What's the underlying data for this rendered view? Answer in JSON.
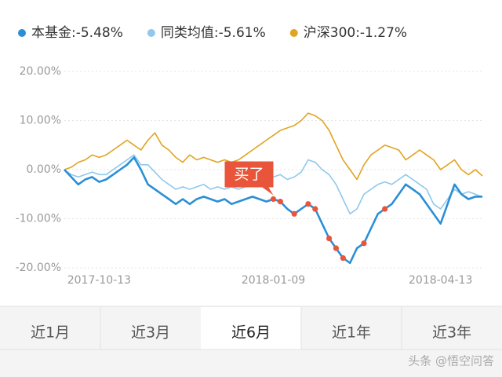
{
  "chart_data": {
    "type": "line",
    "annotation": "买了",
    "categories": [
      null,
      null,
      null,
      null,
      null,
      "2017-10-13",
      null,
      null,
      null,
      null,
      null,
      null,
      null,
      null,
      null,
      null,
      null,
      null,
      null,
      null,
      null,
      null,
      null,
      null,
      null,
      null,
      null,
      null,
      null,
      null,
      "2018-01-09",
      null,
      null,
      null,
      null,
      null,
      null,
      null,
      null,
      null,
      null,
      null,
      null,
      null,
      null,
      null,
      null,
      null,
      null,
      null,
      null,
      null,
      null,
      null,
      "2018-04-13",
      null,
      null,
      null,
      null,
      null,
      null
    ],
    "series": [
      {
        "name": "本基金:-5.48%",
        "color": "#2b8fd6",
        "values": [
          0,
          -1.5,
          -3,
          -2,
          -1.5,
          -2.5,
          -2,
          -1,
          0,
          1,
          2.5,
          0,
          -3,
          -4,
          -5,
          -6,
          -7,
          -6,
          -7,
          -6,
          -5.5,
          -6,
          -6.5,
          -6,
          -7,
          -6.5,
          -6,
          -5.5,
          -6,
          -6.5,
          -6,
          -6.5,
          -8,
          -9,
          -8,
          -7,
          -8,
          -11,
          -14,
          -16,
          -18,
          -19,
          -16,
          -15,
          -12,
          -9,
          -8,
          -7,
          -5,
          -3,
          -4,
          -5,
          -7,
          -9,
          -11,
          -7,
          -3,
          -5,
          -6,
          -5.5,
          -5.48
        ]
      },
      {
        "name": "同类均值:-5.61%",
        "color": "#8fc8ec",
        "values": [
          0,
          -1,
          -1.5,
          -1,
          -0.5,
          -1,
          -1,
          0,
          1,
          2,
          3,
          1,
          1,
          -0.5,
          -2,
          -3,
          -4,
          -3.5,
          -4,
          -3.5,
          -3,
          -4,
          -3.5,
          -4,
          -3.5,
          -4,
          -3.5,
          -3,
          -2.5,
          -2,
          -1.5,
          -1,
          -2,
          -1.5,
          -0.5,
          2,
          1.5,
          0,
          -1,
          -3,
          -6,
          -9,
          -8,
          -5,
          -4,
          -3,
          -2.5,
          -3,
          -2,
          -1,
          -2,
          -3,
          -4,
          -7,
          -8,
          -6,
          -4,
          -5,
          -4.5,
          -5,
          -5.61
        ]
      },
      {
        "name": "沪深300:-1.27%",
        "color": "#e0a422",
        "values": [
          0,
          0.5,
          1.5,
          2,
          3,
          2.5,
          3,
          4,
          5,
          6,
          5,
          4,
          6,
          7.5,
          5,
          4,
          2.5,
          1.5,
          3,
          2,
          2.5,
          2,
          1.5,
          2,
          1.5,
          2,
          3,
          4,
          5,
          6,
          7,
          8,
          8.5,
          9,
          10,
          11.5,
          11,
          10,
          8,
          5,
          2,
          0,
          -2,
          1,
          3,
          4,
          5,
          4.5,
          4,
          2,
          3,
          4,
          3,
          2,
          0,
          1,
          2,
          0,
          -1,
          0,
          -1.27
        ]
      }
    ],
    "buy_points": [
      30,
      31,
      33,
      35,
      36,
      38,
      39,
      40,
      43,
      46
    ],
    "ylim": [
      -21.5,
      22
    ],
    "yticks": [
      {
        "value": 20,
        "label": "20.00%"
      },
      {
        "value": 10,
        "label": "10.00%"
      },
      {
        "value": 0,
        "label": "0.00%"
      },
      {
        "value": -10,
        "label": "-10.00%"
      },
      {
        "value": -20,
        "label": "-20.00%"
      }
    ],
    "grid": true
  },
  "tabs": [
    "近1月",
    "近3月",
    "近6月",
    "近1年",
    "近3年"
  ],
  "selected_tab": 2,
  "watermark": "头条 @悟空问答"
}
